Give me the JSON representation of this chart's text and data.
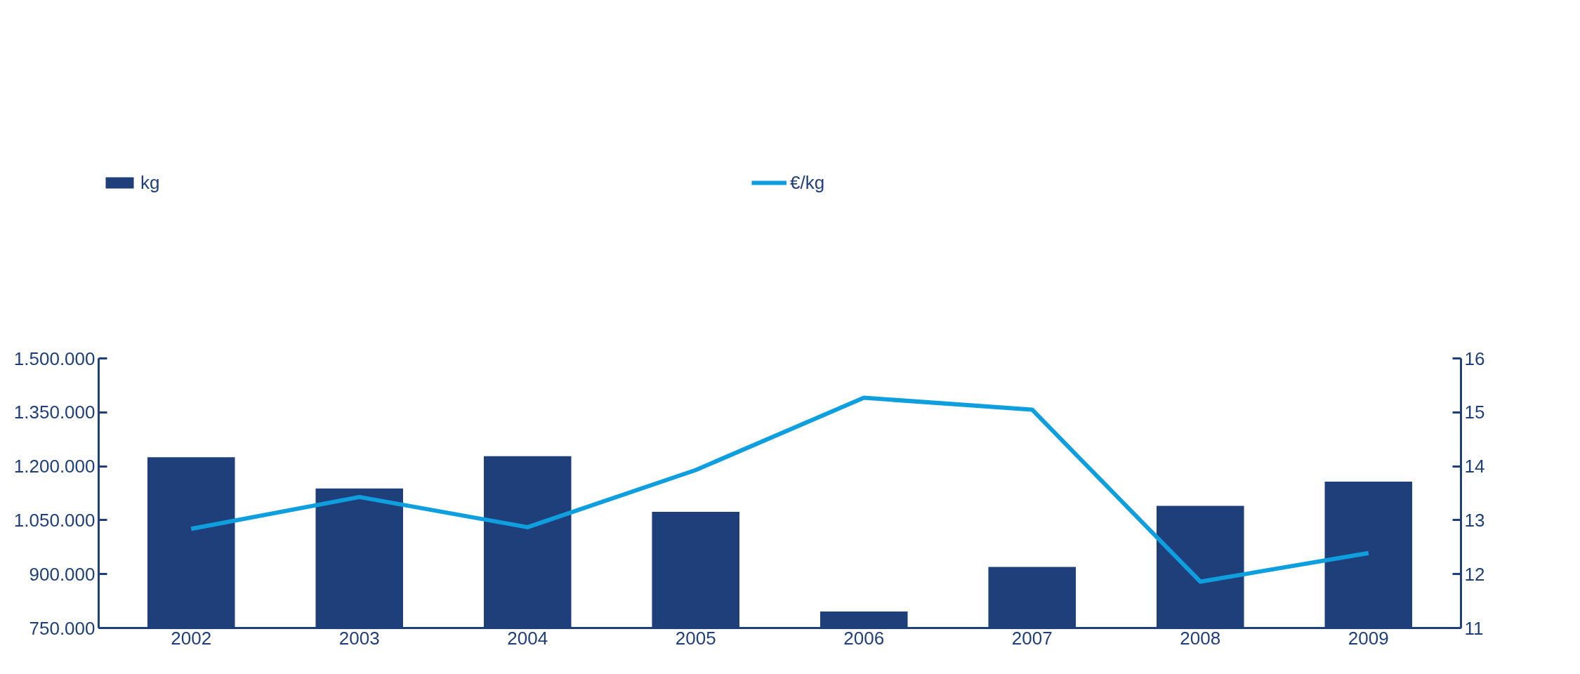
{
  "chart_data": {
    "type": "bar",
    "categories": [
      "2002",
      "2003",
      "2004",
      "2005",
      "2006",
      "2007",
      "2008",
      "2009"
    ],
    "series": [
      {
        "name": "kg",
        "type": "bar",
        "color": "#1f3f7a",
        "values": [
          1225000,
          1138000,
          1228000,
          1073000,
          796000,
          920000,
          1090000,
          1157000
        ]
      },
      {
        "name": "€/kg",
        "type": "line",
        "axis": "y2",
        "color": "#0f9fdf",
        "values": [
          12.84,
          13.43,
          12.87,
          13.93,
          15.27,
          15.05,
          11.86,
          12.39
        ]
      }
    ],
    "ylim": [
      750000,
      1500000
    ],
    "yticks": [
      {
        "value": 750000,
        "label": "750.000"
      },
      {
        "value": 900000,
        "label": "900.000"
      },
      {
        "value": 1050000,
        "label": "1.050.000"
      },
      {
        "value": 1200000,
        "label": "1.200.000"
      },
      {
        "value": 1350000,
        "label": "1.350.000"
      },
      {
        "value": 1500000,
        "label": "1.500.000"
      }
    ],
    "y2lim": [
      11,
      16
    ],
    "y2ticks": [
      11,
      12,
      13,
      14,
      15,
      16
    ],
    "grid": false,
    "legend": "top",
    "marker": "none",
    "line_style": "solid"
  }
}
